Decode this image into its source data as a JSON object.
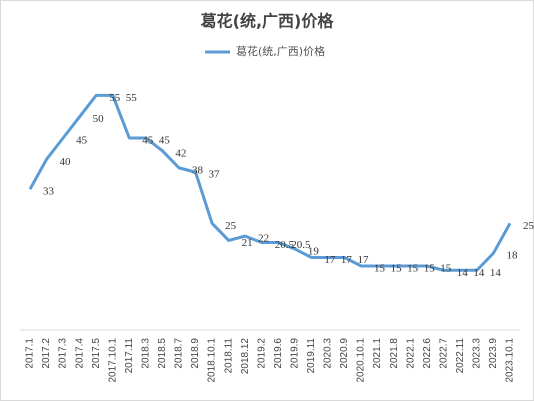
{
  "chart_data": {
    "type": "line",
    "title": "葛花(统,广西)价格",
    "categories": [
      "2017.1",
      "2017.2",
      "2017.3",
      "2017.4",
      "2017.5",
      "2017.10.1",
      "2017.11",
      "2018.3",
      "2018.5",
      "2018.7",
      "2018.9",
      "2018.10.1",
      "2018.11",
      "2018.12",
      "2019.2",
      "2019.6",
      "2019.9",
      "2019.11",
      "2020.3",
      "2020.9",
      "2020.10.1",
      "2021.1",
      "2021.8",
      "2022.1",
      "2022.6",
      "2022.7",
      "2022.11",
      "2023.3",
      "2023.9",
      "2023.10.1"
    ],
    "series": [
      {
        "name": "葛花(统,广西)价格",
        "color": "#5b9bd5",
        "values": [
          33,
          40,
          45,
          50,
          55,
          55,
          45,
          45,
          42,
          38,
          37,
          25,
          21,
          22,
          20.5,
          20.5,
          19,
          17,
          17,
          17,
          15,
          15,
          15,
          15,
          15,
          14,
          14,
          14,
          18,
          25
        ]
      }
    ],
    "ylim": [
      0,
      60
    ],
    "grid": false,
    "legend": "top"
  }
}
